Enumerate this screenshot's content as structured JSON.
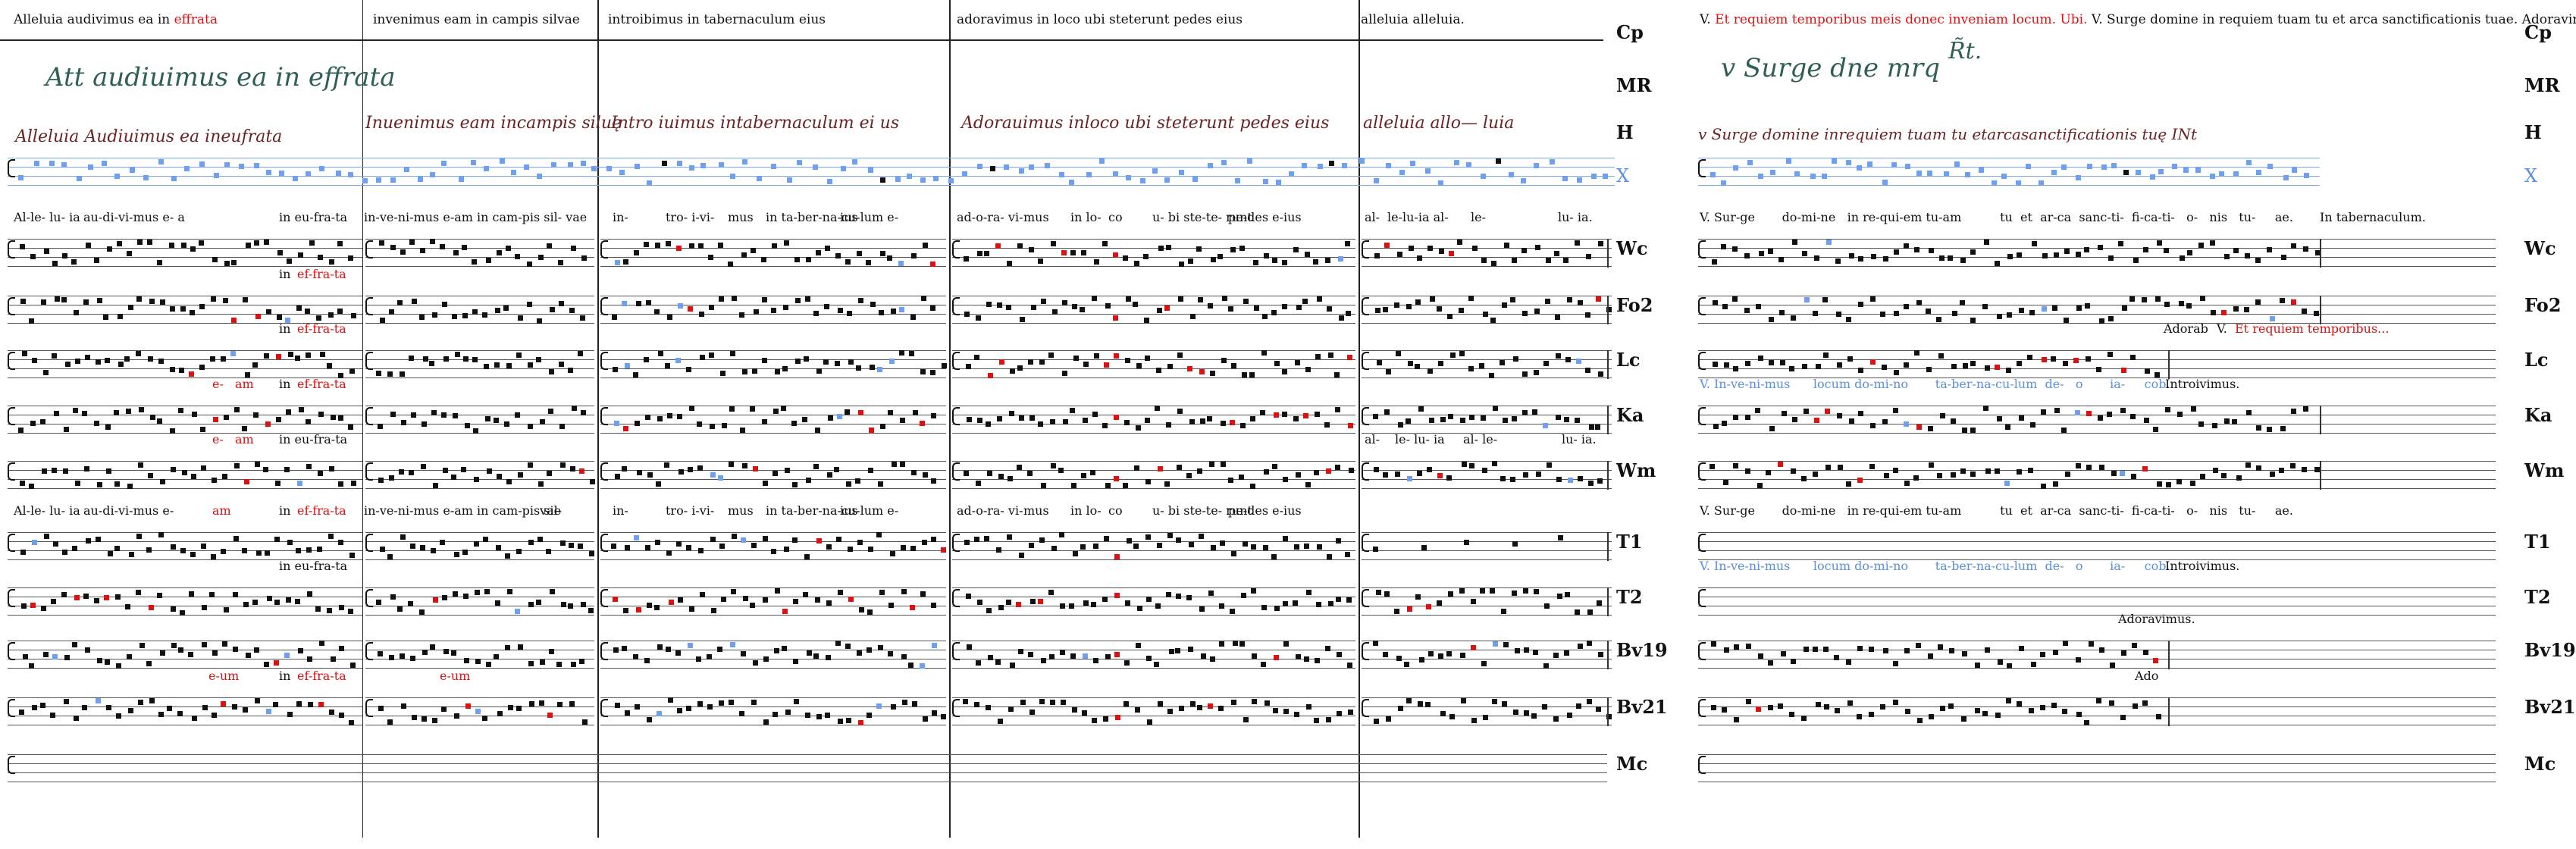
{
  "left": {
    "headers": [
      {
        "parts": [
          {
            "t": "Alleluia audivimus ea in "
          },
          {
            "t": "effrata",
            "c": "red"
          }
        ]
      },
      {
        "parts": [
          {
            "t": "invenimus eam in campis silvae"
          }
        ]
      },
      {
        "parts": [
          {
            "t": "introibimus in tabernaculum eius"
          }
        ]
      },
      {
        "parts": [
          {
            "t": "adoravimus in loco ubi steterunt pedes eius"
          }
        ]
      },
      {
        "parts": [
          {
            "t": "alleluia alleluia."
          }
        ]
      }
    ],
    "ms_green": "Att audiuimus ea in effrata",
    "ms_brown": [
      "Alleluia   Audiuimus ea   ineufrata",
      "Inuenimus eam incampis siluę",
      "Intro iuimus     intabernaculum ei   us",
      "Adorauimus      inloco   ubi steterunt pedes eius",
      "alleluia  allo—   luia"
    ],
    "lyrics": [
      {
        "row": "Wc",
        "segs": [
          "Al-le- lu- ia",
          "au-di-vi-mus e- a",
          "in eu-fra-ta",
          "in-ve-ni-mus e-am in cam-pis sil- vae",
          "in-",
          "tro- i-vi-",
          "mus",
          "in ta-ber-na-cu-lum e-",
          "ius",
          "ad-o-ra- vi-",
          "mus",
          "in lo-",
          "co",
          "u- bi ste-te- runt",
          "pe-des e-ius",
          "al-",
          "le-lu-ia  al-",
          "le-",
          "lu- ia."
        ]
      },
      {
        "row": "Fo2",
        "segs": [
          "in ",
          "ef-fra-ta"
        ]
      },
      {
        "row": "Lc",
        "segs": [
          "in ",
          "ef-fra-ta"
        ]
      },
      {
        "row": "Ka",
        "segs": [
          "e-",
          "am",
          "in ",
          "ef-fra-ta"
        ]
      },
      {
        "row": "Wm",
        "segs": [
          "e-",
          "am",
          "in eu-fra-ta",
          "al-",
          "le- lu- ia",
          "al- le-",
          "lu- ia."
        ]
      },
      {
        "row": "T1",
        "segs": [
          "Al-le- lu- ia",
          "au-di-vi-mus e-",
          "am",
          "in ",
          "ef-fra-ta",
          "in-ve-ni-mus e-am in cam-pis sil-",
          "vae",
          "in-",
          "tro- i-vi-",
          "mus",
          "in ta-ber-na-cu-lum e-",
          "ius",
          "ad-o-ra- vi-",
          "mus",
          "in lo-",
          "co",
          "u- bi ste-te- runt",
          "pe-des e-ius"
        ]
      },
      {
        "row": "T2",
        "segs": [
          "in eu-fra-ta"
        ]
      },
      {
        "row": "Bv21",
        "segs": [
          "e-um",
          "in ",
          "ef-fra-ta",
          "e-um"
        ]
      }
    ]
  },
  "right": {
    "header": [
      {
        "t": "V. "
      },
      {
        "t": "Et requiem temporibus meis donec inveniam locum.",
        "c": "red"
      },
      {
        "t": "  "
      },
      {
        "t": "Ubi.",
        "c": "red"
      },
      {
        "t": "  V. Surge domine in requiem tuam tu et arca sanctificationis tuae.  Adoravimus."
      }
    ],
    "ms_green": "v Surge dne mrq",
    "ms_green_sup": "R̃t.",
    "ms_brown": "v Surge   domine  inrequiem tuam    tu etarcasanctificationis  tuę   INt",
    "lyrics": [
      {
        "row": "Wc",
        "text": "V. Sur-ge       do-mi-ne   in re-qui-em tu-am          tu  et  ar-ca  sanc-ti-  fi-ca-ti-   o-   nis   tu-     ae.",
        "tail": "In tabernaculum."
      },
      {
        "row": "Lc",
        "text": "Adorab",
        "tail2": "V. ",
        "tail2red": "Et requiem temporibus..."
      },
      {
        "row": "Ka",
        "text_blue": "V. In-ve-ni-mus      locum do-mi-no       ta-ber-na-cu-lum  de-   o       ia-     cob.",
        "tail": "Introivimus."
      },
      {
        "row": "T1",
        "text": "V. Sur-ge       do-mi-ne   in re-qui-em tu-am          tu  et  ar-ca  sanc-ti-  fi-ca-ti-   o-   nis   tu-     ae."
      },
      {
        "row": "T2",
        "text_blue": "V. In-ve-ni-mus      locum do-mi-no       ta-ber-na-cu-lum  de-   o       ia-     cob.",
        "tail": "Introivimus."
      },
      {
        "row": "Bv19",
        "text": "Adoravimus."
      },
      {
        "row": "Bv21",
        "text": "Ado"
      }
    ]
  },
  "row_labels": [
    "Cp",
    "MR",
    "H",
    "X",
    "Wc",
    "Fo2",
    "Lc",
    "Ka",
    "Wm",
    "T1",
    "T2",
    "Bv19",
    "Bv21",
    "Mc"
  ],
  "colors": {
    "red": "#dd1111",
    "blue": "#5b8fe0",
    "green": "#2f5f57",
    "brown": "#6b2323"
  }
}
